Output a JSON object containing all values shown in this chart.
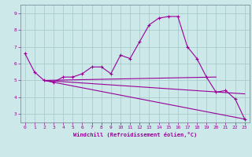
{
  "title": "",
  "xlabel": "Windchill (Refroidissement éolien,°C)",
  "background_color": "#cce8e8",
  "line_color": "#990099",
  "grid_color": "#aacccc",
  "xlim": [
    -0.5,
    23.5
  ],
  "ylim": [
    2.5,
    9.5
  ],
  "xticks": [
    0,
    1,
    2,
    3,
    4,
    5,
    6,
    7,
    8,
    9,
    10,
    11,
    12,
    13,
    14,
    15,
    16,
    17,
    18,
    19,
    20,
    21,
    22,
    23
  ],
  "yticks": [
    3,
    4,
    5,
    6,
    7,
    8,
    9
  ],
  "line1_x": [
    0,
    1,
    2,
    3,
    4,
    5,
    6,
    7,
    8,
    9,
    10,
    11,
    12,
    13,
    14,
    15,
    16,
    17,
    18,
    19,
    20,
    21,
    22,
    23
  ],
  "line1_y": [
    6.6,
    5.5,
    5.0,
    4.9,
    5.2,
    5.2,
    5.4,
    5.8,
    5.8,
    5.4,
    6.5,
    6.3,
    7.3,
    8.3,
    8.7,
    8.8,
    8.8,
    7.0,
    6.3,
    5.2,
    4.3,
    4.4,
    3.9,
    2.7
  ],
  "line2_x": [
    2,
    20
  ],
  "line2_y": [
    5.0,
    5.2
  ],
  "line3_x": [
    2,
    23
  ],
  "line3_y": [
    5.0,
    4.2
  ],
  "line4_x": [
    2,
    23
  ],
  "line4_y": [
    5.0,
    2.7
  ],
  "marker": "+",
  "markersize": 3,
  "linewidth": 0.8,
  "tick_fontsize": 4.5,
  "xlabel_fontsize": 5.0
}
